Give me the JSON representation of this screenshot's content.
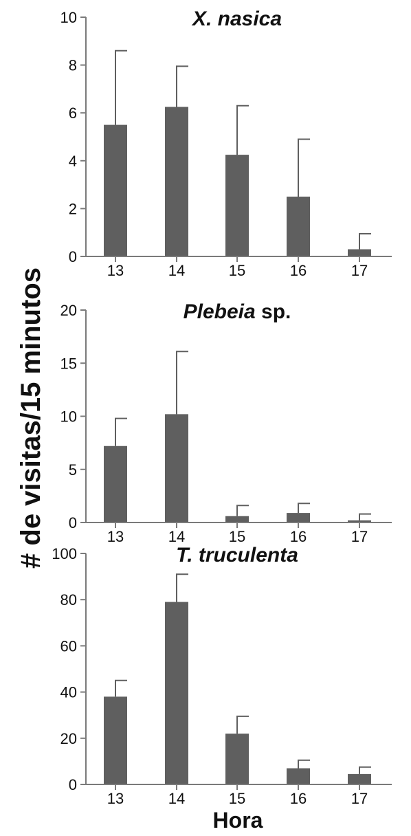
{
  "chart_data": [
    {
      "type": "bar",
      "title_italic": "X. nasica",
      "title_plain": "",
      "categories": [
        "13",
        "14",
        "15",
        "16",
        "17"
      ],
      "values": [
        5.5,
        6.25,
        4.25,
        2.5,
        0.3
      ],
      "error_upper": [
        8.6,
        7.95,
        6.3,
        4.9,
        0.95
      ],
      "ylim": [
        0,
        10
      ],
      "yticks": [
        "0",
        "2",
        "4",
        "6",
        "8",
        "10"
      ]
    },
    {
      "type": "bar",
      "title_italic": "Plebeia",
      "title_plain": " sp.",
      "categories": [
        "13",
        "14",
        "15",
        "16",
        "17"
      ],
      "values": [
        7.2,
        10.2,
        0.6,
        0.9,
        0.2
      ],
      "error_upper": [
        9.8,
        16.1,
        1.6,
        1.8,
        0.8
      ],
      "ylim": [
        0,
        20
      ],
      "yticks": [
        "0",
        "5",
        "10",
        "15",
        "20"
      ]
    },
    {
      "type": "bar",
      "title_italic": "T. truculenta",
      "title_plain": "",
      "categories": [
        "13",
        "14",
        "15",
        "16",
        "17"
      ],
      "values": [
        38,
        79,
        22,
        7,
        4.5
      ],
      "error_upper": [
        45,
        91,
        29.5,
        10.5,
        7.5
      ],
      "ylim": [
        0,
        100
      ],
      "yticks": [
        "0",
        "20",
        "40",
        "60",
        "80",
        "100"
      ]
    }
  ],
  "ylabel": "# de visitas/15 minutos",
  "xlabel": "Hora",
  "colors": {
    "bar": "#5f5f5f",
    "axis": "#7a7a7a",
    "error": "#5f5f5f"
  }
}
